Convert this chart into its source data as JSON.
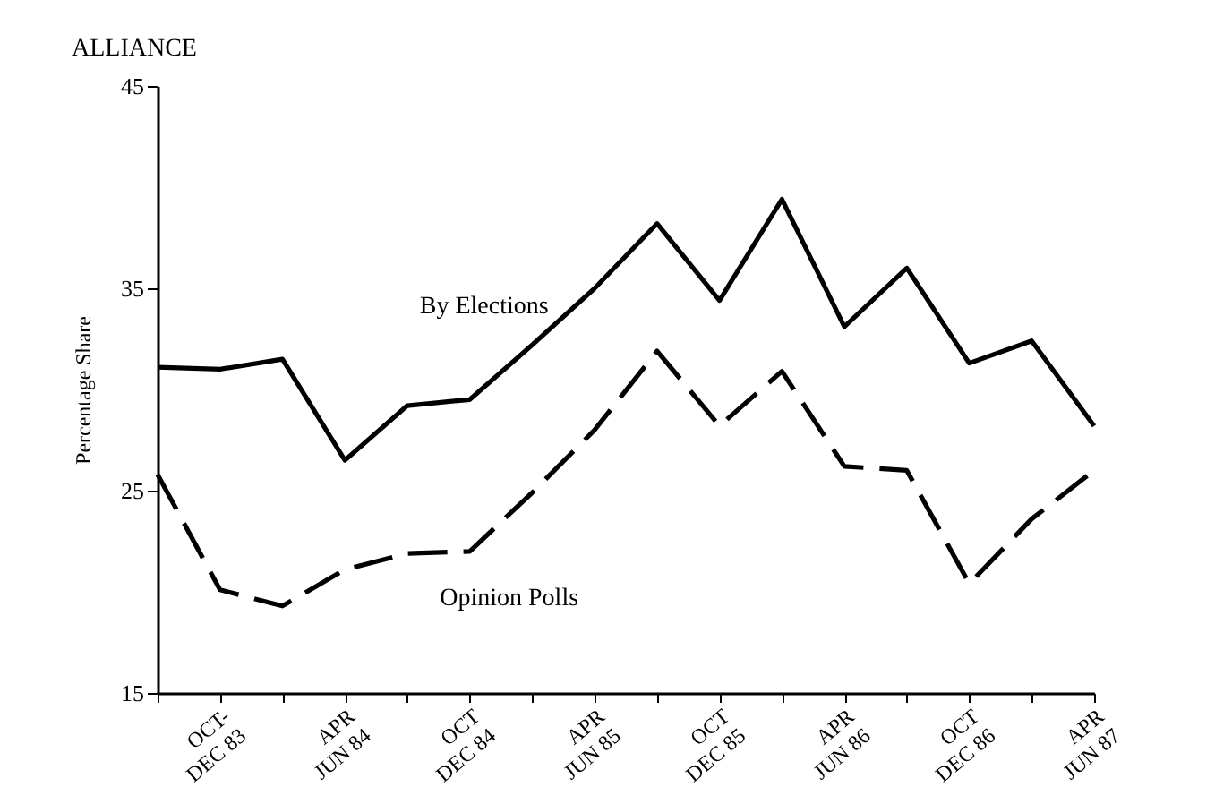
{
  "chart_data": {
    "type": "line",
    "title": "ALLIANCE",
    "ylabel": "Percentage Share",
    "categories": [
      null,
      "OCT-\nDEC 83",
      null,
      "APR\nJUN 84",
      null,
      "OCT\nDEC 84",
      null,
      "APR\nJUN 85",
      null,
      "OCT\nDEC 85",
      null,
      "APR\nJUN 86",
      null,
      "OCT\nDEC 86",
      null,
      "APR\nJUN 87"
    ],
    "series": [
      {
        "name": "By Elections",
        "color": "#000000",
        "line_style": "solid",
        "values": [
          31.1,
          31.0,
          31.5,
          26.5,
          29.2,
          29.5,
          32.2,
          35.0,
          38.2,
          34.4,
          39.4,
          33.1,
          36.0,
          31.3,
          32.4,
          28.2
        ]
      },
      {
        "name": "Opinion Polls",
        "color": "#000000",
        "line_style": "dashed",
        "values": [
          25.8,
          20.1,
          19.3,
          21.1,
          21.9,
          22.0,
          24.9,
          28.0,
          31.9,
          28.2,
          30.9,
          26.2,
          26.0,
          20.4,
          23.6,
          26.0
        ]
      }
    ],
    "ylim": [
      15,
      45
    ],
    "yticks": [
      15,
      25,
      35,
      45
    ],
    "grid": false,
    "marker": "none"
  }
}
